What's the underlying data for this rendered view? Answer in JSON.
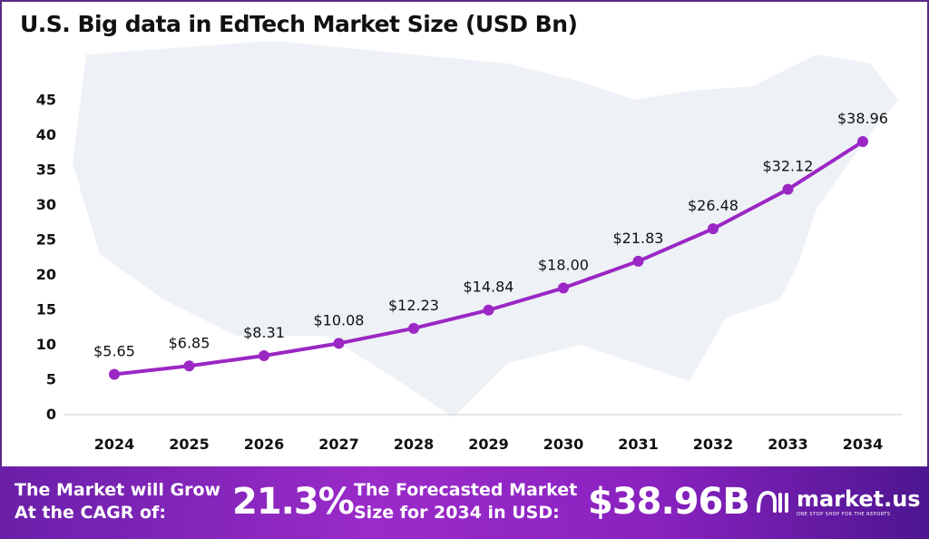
{
  "title": "U.S. Big data in EdTech Market Size (USD Bn)",
  "chart_data": {
    "type": "line",
    "title": "U.S. Big data in EdTech Market Size (USD Bn)",
    "categories": [
      "2024",
      "2025",
      "2026",
      "2027",
      "2028",
      "2029",
      "2030",
      "2031",
      "2032",
      "2033",
      "2034"
    ],
    "values": [
      5.65,
      6.85,
      8.31,
      10.08,
      12.23,
      14.84,
      18.0,
      21.83,
      26.48,
      32.12,
      38.96
    ],
    "labels": [
      "$5.65",
      "$6.85",
      "$8.31",
      "$10.08",
      "$12.23",
      "$14.84",
      "$18.00",
      "$21.83",
      "$26.48",
      "$32.12",
      "$38.96"
    ],
    "yticks": [
      "0",
      "5",
      "10",
      "15",
      "20",
      "25",
      "30",
      "35",
      "40",
      "45"
    ],
    "ylim": [
      0,
      45
    ],
    "grid": false,
    "color": "#9b27c4"
  },
  "footer": {
    "cagr_line1": "The Market will Grow",
    "cagr_line2": "At the CAGR of:",
    "cagr_value": "21.3%",
    "forecast_line1": "The Forecasted Market",
    "forecast_line2": "Size for 2034 in USD:",
    "forecast_value": "$38.96B",
    "logo_name": "market.us",
    "logo_tagline": "ONE STOP SHOP FOR THE REPORTS"
  }
}
